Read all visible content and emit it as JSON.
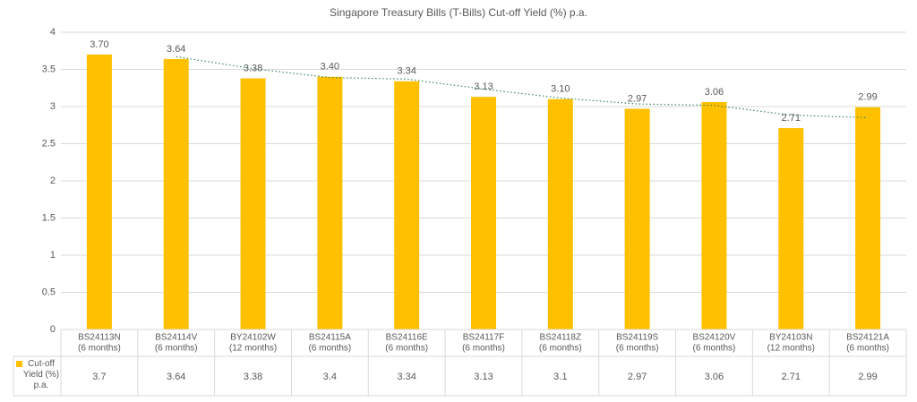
{
  "chart_data": {
    "type": "bar",
    "title": "Singapore Treasury Bills (T-Bills) Cut-off Yield (%) p.a.",
    "categories": [
      [
        "BS24113N",
        "(6 months)"
      ],
      [
        "BS24114V",
        "(6 months)"
      ],
      [
        "BY24102W",
        "(12 months)"
      ],
      [
        "BS24115A",
        "(6 months)"
      ],
      [
        "BS24116E",
        "(6 months)"
      ],
      [
        "BS24117F",
        "(6 months)"
      ],
      [
        "BS24118Z",
        "(6 months)"
      ],
      [
        "BS24119S",
        "(6 months)"
      ],
      [
        "BS24120V",
        "(6 months)"
      ],
      [
        "BY24103N",
        "(12 months)"
      ],
      [
        "BS24121A",
        "(6 months)"
      ]
    ],
    "series": [
      {
        "name": "Cut-off Yield (%) p.a.",
        "color": "#ffc000",
        "values": [
          3.7,
          3.64,
          3.38,
          3.4,
          3.34,
          3.13,
          3.1,
          2.97,
          3.06,
          2.71,
          2.99
        ],
        "value_labels": [
          "3.70",
          "3.64",
          "3.38",
          "3.40",
          "3.34",
          "3.13",
          "3.10",
          "2.97",
          "3.06",
          "2.71",
          "2.99"
        ]
      }
    ],
    "trendline": {
      "color": "#3a8a5a",
      "values": [
        null,
        3.67,
        3.51,
        3.39,
        3.37,
        3.235,
        3.115,
        3.035,
        3.015,
        2.885,
        2.85
      ]
    },
    "ylim": [
      0,
      4
    ],
    "yticks": [
      0,
      0.5,
      1,
      1.5,
      2,
      2.5,
      3,
      3.5,
      4
    ],
    "grid": true,
    "data_table": true
  }
}
